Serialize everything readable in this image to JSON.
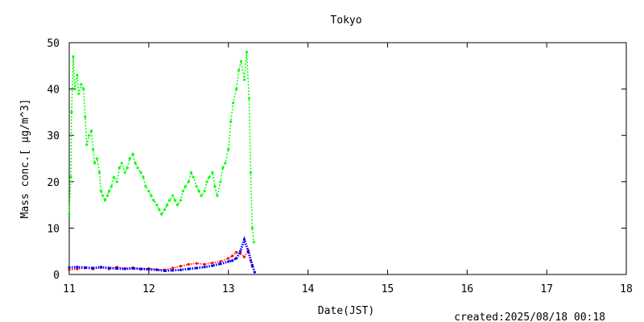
{
  "chart_data": {
    "type": "scatter",
    "title": "Tokyo",
    "xlabel": "Date(JST)",
    "ylabel": "Mass conc.[ μg/m^3]",
    "xlim": [
      11,
      18
    ],
    "ylim": [
      0,
      50
    ],
    "x_ticks": [
      "11",
      "12",
      "13",
      "14",
      "15",
      "16",
      "17",
      "18"
    ],
    "y_ticks": [
      "0",
      "10",
      "20",
      "30",
      "40",
      "50"
    ],
    "footer": "created:2025/08/18 00:18",
    "grid": false,
    "legend": "none",
    "series": [
      {
        "color": "#00ff00",
        "points": [
          [
            11.0,
            13
          ],
          [
            11.02,
            21
          ],
          [
            11.03,
            35
          ],
          [
            11.05,
            47
          ],
          [
            11.07,
            40
          ],
          [
            11.1,
            43
          ],
          [
            11.12,
            39
          ],
          [
            11.15,
            41
          ],
          [
            11.18,
            40
          ],
          [
            11.2,
            34
          ],
          [
            11.22,
            28
          ],
          [
            11.25,
            30
          ],
          [
            11.28,
            31
          ],
          [
            11.3,
            27
          ],
          [
            11.32,
            24
          ],
          [
            11.35,
            25
          ],
          [
            11.38,
            22
          ],
          [
            11.4,
            18
          ],
          [
            11.42,
            17
          ],
          [
            11.45,
            16
          ],
          [
            11.48,
            17
          ],
          [
            11.5,
            18
          ],
          [
            11.53,
            19
          ],
          [
            11.56,
            21
          ],
          [
            11.6,
            20
          ],
          [
            11.63,
            23
          ],
          [
            11.66,
            24
          ],
          [
            11.7,
            22
          ],
          [
            11.73,
            23
          ],
          [
            11.76,
            25
          ],
          [
            11.8,
            26
          ],
          [
            11.83,
            24
          ],
          [
            11.86,
            23
          ],
          [
            11.9,
            22
          ],
          [
            11.93,
            21
          ],
          [
            11.96,
            19
          ],
          [
            12.0,
            18
          ],
          [
            12.03,
            17
          ],
          [
            12.06,
            16
          ],
          [
            12.1,
            15
          ],
          [
            12.13,
            14
          ],
          [
            12.16,
            13
          ],
          [
            12.2,
            14
          ],
          [
            12.23,
            15
          ],
          [
            12.26,
            16
          ],
          [
            12.3,
            17
          ],
          [
            12.33,
            16
          ],
          [
            12.36,
            15
          ],
          [
            12.4,
            16
          ],
          [
            12.43,
            18
          ],
          [
            12.46,
            19
          ],
          [
            12.5,
            20
          ],
          [
            12.53,
            22
          ],
          [
            12.56,
            21
          ],
          [
            12.6,
            19
          ],
          [
            12.63,
            18
          ],
          [
            12.66,
            17
          ],
          [
            12.7,
            18
          ],
          [
            12.73,
            20
          ],
          [
            12.76,
            21
          ],
          [
            12.8,
            22
          ],
          [
            12.83,
            19
          ],
          [
            12.86,
            17
          ],
          [
            12.9,
            20
          ],
          [
            12.93,
            23
          ],
          [
            12.96,
            24
          ],
          [
            13.0,
            27
          ],
          [
            13.03,
            33
          ],
          [
            13.06,
            37
          ],
          [
            13.1,
            40
          ],
          [
            13.13,
            44
          ],
          [
            13.16,
            46
          ],
          [
            13.2,
            42
          ],
          [
            13.23,
            48
          ],
          [
            13.26,
            38
          ],
          [
            13.28,
            22
          ],
          [
            13.3,
            10
          ],
          [
            13.32,
            7
          ]
        ]
      },
      {
        "color": "#ff0000",
        "points": [
          [
            11.0,
            1.0
          ],
          [
            11.1,
            1.2
          ],
          [
            11.2,
            1.4
          ],
          [
            11.3,
            1.2
          ],
          [
            11.4,
            1.5
          ],
          [
            11.5,
            1.2
          ],
          [
            11.6,
            1.6
          ],
          [
            11.7,
            1.3
          ],
          [
            11.8,
            1.5
          ],
          [
            11.9,
            1.2
          ],
          [
            12.0,
            1.3
          ],
          [
            12.1,
            1.1
          ],
          [
            12.2,
            1.0
          ],
          [
            12.3,
            1.4
          ],
          [
            12.4,
            1.8
          ],
          [
            12.5,
            2.2
          ],
          [
            12.6,
            2.4
          ],
          [
            12.7,
            2.2
          ],
          [
            12.8,
            2.5
          ],
          [
            12.9,
            2.8
          ],
          [
            13.0,
            3.5
          ],
          [
            13.05,
            4.0
          ],
          [
            13.1,
            4.8
          ],
          [
            13.15,
            4.5
          ],
          [
            13.2,
            3.8
          ],
          [
            13.25,
            5.2
          ],
          [
            13.28,
            3.0
          ],
          [
            13.3,
            1.8
          ]
        ]
      },
      {
        "color": "#0000ff",
        "points": [
          [
            11.0,
            1.5
          ],
          [
            11.1,
            1.6
          ],
          [
            11.2,
            1.5
          ],
          [
            11.3,
            1.4
          ],
          [
            11.4,
            1.6
          ],
          [
            11.5,
            1.4
          ],
          [
            11.6,
            1.3
          ],
          [
            11.7,
            1.2
          ],
          [
            11.8,
            1.3
          ],
          [
            11.9,
            1.2
          ],
          [
            12.0,
            1.1
          ],
          [
            12.1,
            1.0
          ],
          [
            12.2,
            0.8
          ],
          [
            12.3,
            0.9
          ],
          [
            12.4,
            1.0
          ],
          [
            12.5,
            1.2
          ],
          [
            12.6,
            1.4
          ],
          [
            12.7,
            1.6
          ],
          [
            12.8,
            1.9
          ],
          [
            12.9,
            2.3
          ],
          [
            13.0,
            2.8
          ],
          [
            13.05,
            3.0
          ],
          [
            13.1,
            3.5
          ],
          [
            13.15,
            5.0
          ],
          [
            13.2,
            7.5
          ],
          [
            13.25,
            5.0
          ],
          [
            13.3,
            2.0
          ],
          [
            13.33,
            0.5
          ]
        ]
      }
    ]
  }
}
